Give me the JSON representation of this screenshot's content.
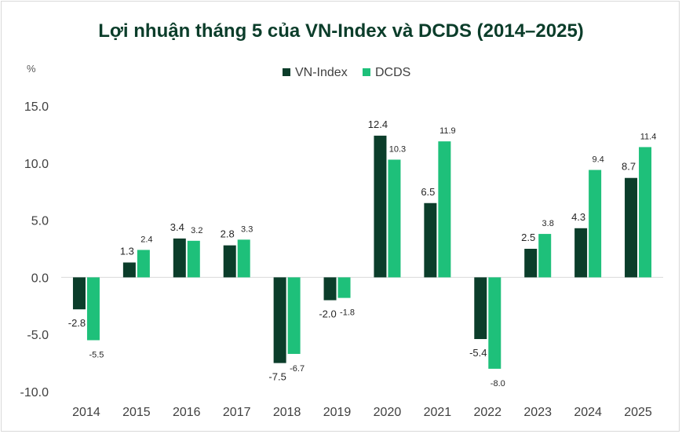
{
  "chart_data": {
    "type": "bar",
    "title": "Lợi nhuận tháng 5 của VN-Index và DCDS (2014–2025)",
    "unit_label": "%",
    "categories": [
      "2014",
      "2015",
      "2016",
      "2017",
      "2018",
      "2019",
      "2020",
      "2021",
      "2022",
      "2023",
      "2024",
      "2025"
    ],
    "series": [
      {
        "name": "VN-Index",
        "color": "#0b3d2a",
        "values": [
          -2.8,
          1.3,
          3.4,
          2.8,
          -7.5,
          -2.0,
          12.4,
          6.5,
          -5.4,
          2.5,
          4.3,
          8.7
        ]
      },
      {
        "name": "DCDS",
        "color": "#1ec07a",
        "values": [
          -5.5,
          2.4,
          3.2,
          3.3,
          -6.7,
          -1.8,
          10.3,
          11.9,
          -8.0,
          3.8,
          9.4,
          11.4
        ]
      }
    ],
    "y_ticks": [
      "15.0",
      "10.0",
      "5.0",
      "0.0",
      "-5.0",
      "-10.0"
    ],
    "y_tick_values": [
      15,
      10,
      5,
      0,
      -5,
      -10
    ],
    "ylim": [
      -10,
      15
    ],
    "grid": false,
    "legend_position": "top-center"
  }
}
